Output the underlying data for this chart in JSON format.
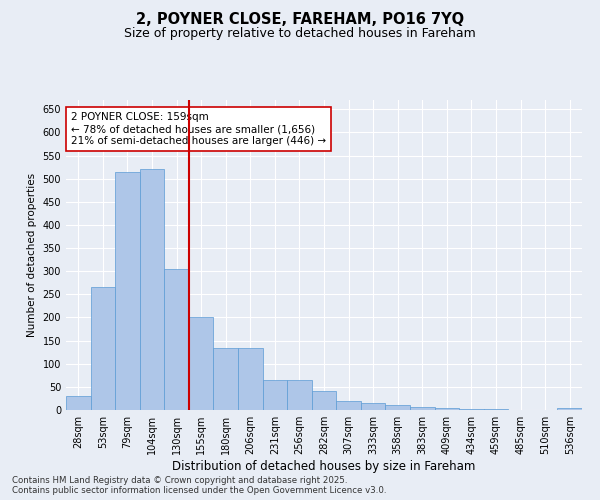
{
  "title_line1": "2, POYNER CLOSE, FAREHAM, PO16 7YQ",
  "title_line2": "Size of property relative to detached houses in Fareham",
  "xlabel": "Distribution of detached houses by size in Fareham",
  "ylabel": "Number of detached properties",
  "categories": [
    "28sqm",
    "53sqm",
    "79sqm",
    "104sqm",
    "130sqm",
    "155sqm",
    "180sqm",
    "206sqm",
    "231sqm",
    "256sqm",
    "282sqm",
    "307sqm",
    "333sqm",
    "358sqm",
    "383sqm",
    "409sqm",
    "434sqm",
    "459sqm",
    "485sqm",
    "510sqm",
    "536sqm"
  ],
  "values": [
    30,
    265,
    515,
    520,
    305,
    200,
    135,
    135,
    65,
    65,
    40,
    20,
    15,
    10,
    7,
    5,
    3,
    2,
    1,
    0,
    4
  ],
  "bar_color": "#aec6e8",
  "bar_edge_color": "#5b9bd5",
  "vline_color": "#cc0000",
  "annotation_text": "2 POYNER CLOSE: 159sqm\n← 78% of detached houses are smaller (1,656)\n21% of semi-detached houses are larger (446) →",
  "annotation_box_color": "#ffffff",
  "annotation_box_edge": "#cc0000",
  "ylim": [
    0,
    670
  ],
  "yticks": [
    0,
    50,
    100,
    150,
    200,
    250,
    300,
    350,
    400,
    450,
    500,
    550,
    600,
    650
  ],
  "background_color": "#e8edf5",
  "grid_color": "#ffffff",
  "footer_line1": "Contains HM Land Registry data © Crown copyright and database right 2025.",
  "footer_line2": "Contains public sector information licensed under the Open Government Licence v3.0."
}
